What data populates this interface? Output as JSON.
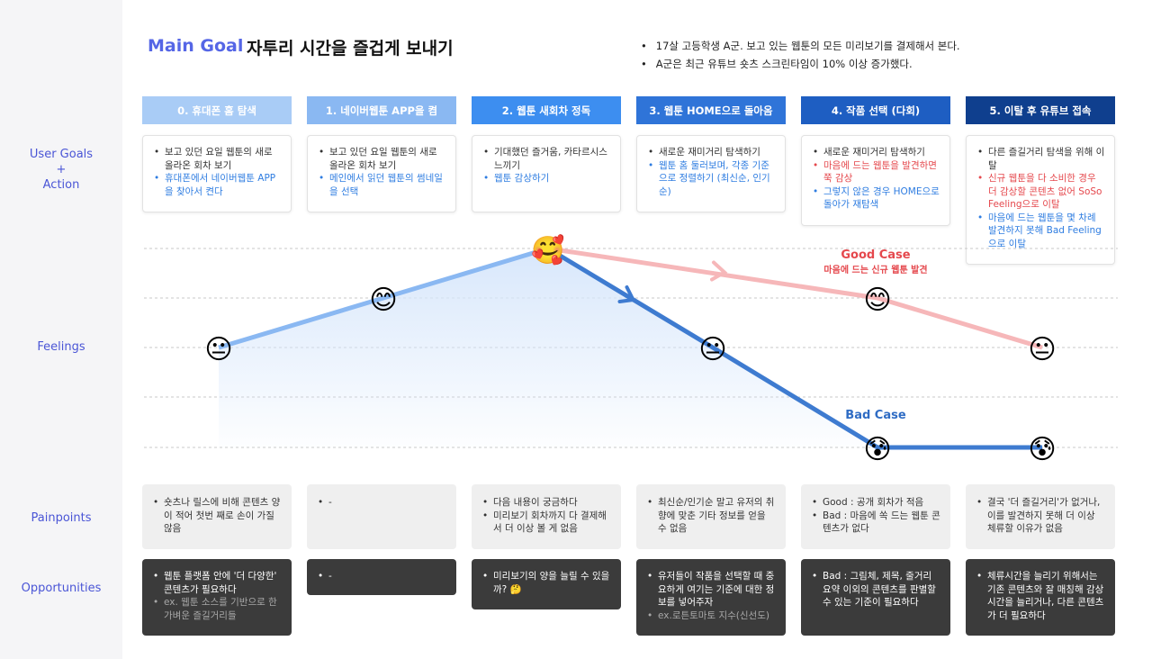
{
  "title": {
    "main_goal": "Main Goal",
    "goal_text": "자투리 시간을 즐겁게 보내기"
  },
  "context": [
    "17살 고등학생 A군. 보고 있는 웹툰의 모든 미리보기를 결제해서 본다.",
    "A군은 최근 유튜브 숏츠 스크린타임이 10% 이상 증가했다."
  ],
  "row_labels": {
    "goals": [
      "User Goals",
      "+",
      "Action"
    ],
    "feelings": "Feelings",
    "painpoints": "Painpoints",
    "opportunities": "Opportunities"
  },
  "colors": {
    "accent": "#5566e6",
    "label": "#4a55d6",
    "good_line": "#f6b7b9",
    "bad_line": "#3e7bd0",
    "rise_line": "#8ab8f2",
    "area": "#d6e6fb",
    "good_text": "#e5484d",
    "bad_text": "#2f6cc4"
  },
  "stages": [
    {
      "header": "0. 휴대폰 홈 탐색",
      "color": "#a9ccf6",
      "goals": [
        {
          "text": "보고 있던 요일 웹툰의 새로 올라온 회차 보기",
          "tone": "black"
        },
        {
          "text": "휴대폰에서 네이버웹툰 APP을 찾아서 켠다",
          "tone": "blue"
        }
      ],
      "pain": [
        "숏츠나 릴스에 비해 콘텐츠 양이 적어 첫번 째로 손이 가질 않음"
      ],
      "opp": [
        {
          "text": "웹툰 플랫폼 안에 '더 다양한' 콘텐츠가 필요하다",
          "tone": "white"
        },
        {
          "text": "ex. 웹툰 소스를 기반으로 한 가벼운 즐길거리들",
          "tone": "gray"
        }
      ]
    },
    {
      "header": "1. 네이버웹툰 APP을 켬",
      "color": "#8ab8f2",
      "goals": [
        {
          "text": "보고 있던 요일 웹툰의 새로 올라온 회차 보기",
          "tone": "black"
        },
        {
          "text": "메인에서 읽던 웹툰의 썸네일을 선택",
          "tone": "blue"
        }
      ],
      "pain": [
        "-"
      ],
      "opp": [
        {
          "text": "-",
          "tone": "white"
        }
      ]
    },
    {
      "header": "2. 웹툰 새회차 정독",
      "color": "#3d8ef0",
      "goals": [
        {
          "text": "기대했던 즐거움, 카타르시스 느끼기",
          "tone": "black"
        },
        {
          "text": "웹툰 감상하기",
          "tone": "blue"
        }
      ],
      "pain": [
        "다음 내용이 궁금하다",
        "미리보기 회차까지 다 결제해서 더 이상 볼 게 없음"
      ],
      "opp": [
        {
          "text": "미리보기의 양을 늘릴 수 있을까? 🤔",
          "tone": "white"
        }
      ]
    },
    {
      "header": "3. 웹툰 HOME으로 돌아옴",
      "color": "#2f74d8",
      "goals": [
        {
          "text": "새로운 재미거리 탐색하기",
          "tone": "black"
        },
        {
          "text": "웹툰 홈 둘러보며, 각종 기준으로 정렬하기 (최신순, 인기순)",
          "tone": "blue"
        }
      ],
      "pain": [
        "최신순/인기순 말고 유저의 취향에 맞춘 기타 정보를 얻을 수 없음"
      ],
      "opp": [
        {
          "text": "유저들이 작품을 선택할 때 중요하게 여기는 기준에 대한 정보를 넣어주자",
          "tone": "white"
        },
        {
          "text": "ex.로튼토마토 지수(신선도)",
          "tone": "gray"
        }
      ]
    },
    {
      "header": "4. 작품 선택 (다회)",
      "color": "#1e5ec2",
      "goals": [
        {
          "text": "새로운 재미거리 탐색하기",
          "tone": "black"
        },
        {
          "text": "마음에 드는 웹툰을 발견하면 쭉 감상",
          "tone": "red"
        },
        {
          "text": "그렇지 않은 경우 HOME으로 돌아가 재탐색",
          "tone": "blue"
        }
      ],
      "pain": [
        "Good : 공개 회차가 적음",
        "Bad : 마음에 쏙 드는 웹툰 콘텐츠가 없다"
      ],
      "opp": [
        {
          "text": "Bad : 그림체, 제목, 줄거리 요약 이외의 콘텐츠를 판별할 수 있는 기준이 필요하다",
          "tone": "white"
        }
      ]
    },
    {
      "header": "5. 이탈 후 유튜브 접속",
      "color": "#0f3f8e",
      "goals": [
        {
          "text": "다른 즐길거리 탐색을 위해 이탈",
          "tone": "black"
        },
        {
          "text": "신규 웹툰을 다 소비한 경우 더 감상할 콘텐츠 없어 SoSo Feeling으로 이탈",
          "tone": "red"
        },
        {
          "text": "마음에 드는 웹툰을 몇 차례 발견하지 못해 Bad Feeling으로 이탈",
          "tone": "blue"
        }
      ],
      "pain": [
        "결국 '더 즐길거리'가 없거나, 이를 발견하지 못해 더 이상 체류할 이유가 없음"
      ],
      "opp": [
        {
          "text": "체류시간을 늘리기 위해서는 기존 콘텐츠와 잘 매칭해 감상 시간을 늘리거나, 다른 콘텐츠가 더 필요하다",
          "tone": "white"
        }
      ]
    }
  ],
  "feelings": {
    "levels": [
      "level-1",
      "level-2",
      "level-3",
      "level-4",
      "level-5"
    ],
    "main_path": [
      {
        "stage": 0,
        "level": 3,
        "emoji": "😐"
      },
      {
        "stage": 1,
        "level": 4,
        "emoji": "😊"
      },
      {
        "stage": 2,
        "level": 5,
        "emoji": "🥰"
      },
      {
        "stage": 3,
        "level": 3,
        "emoji": "😐"
      },
      {
        "stage": 4,
        "level": 1,
        "emoji": "😰"
      },
      {
        "stage": 5,
        "level": 1,
        "emoji": "😰"
      }
    ],
    "good_case": {
      "title": "Good Case",
      "subtitle": "마음에 드는 신규 웹툰 발견",
      "points": [
        {
          "stage": 2,
          "level": 5
        },
        {
          "stage": 4,
          "level": 4,
          "emoji": "😊"
        },
        {
          "stage": 5,
          "level": 3,
          "emoji": "😐"
        }
      ]
    },
    "bad_case": {
      "title": "Bad Case"
    }
  }
}
